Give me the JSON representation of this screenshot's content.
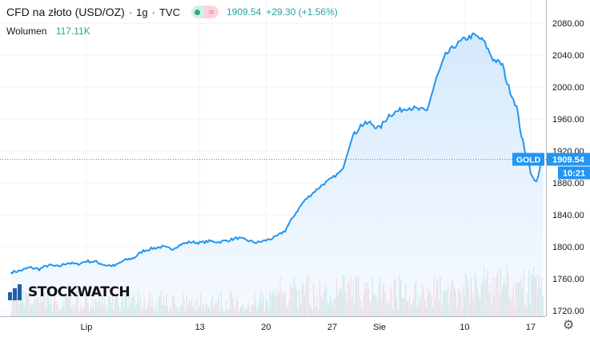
{
  "legend": {
    "symbol": "CFD na złoto (USD/OZ)",
    "interval": "1g",
    "source": "TVC",
    "last": "1909.54",
    "change": "+29.30 (+1.56%)",
    "status_icon": "market-status-icon"
  },
  "volume": {
    "label": "Wolumen",
    "value": "117.11K"
  },
  "brand": {
    "name": "STOCKWATCH"
  },
  "price_tag": {
    "label": "GOLD",
    "value": "1909.54",
    "time": "10:21"
  },
  "settings_icon": "gear-icon",
  "colors": {
    "line": "#2196f3",
    "area": "#e3f1fd",
    "up": "#26a69a",
    "down": "#ef5350",
    "tag": "#2196f3"
  },
  "chart_data": {
    "type": "area",
    "ylim": [
      1720,
      2100
    ],
    "y_ticks": [
      1720,
      1760,
      1800,
      1840,
      1880,
      1920,
      1960,
      2000,
      2040,
      2080
    ],
    "x_ticks": [
      {
        "label": "Lip",
        "day": 0
      },
      {
        "label": "13",
        "day": 12
      },
      {
        "label": "20",
        "day": 19
      },
      {
        "label": "27",
        "day": 26
      },
      {
        "label": "Sie",
        "day": 31
      },
      {
        "label": "10",
        "day": 40
      },
      {
        "label": "17",
        "day": 47
      }
    ],
    "xlim": [
      -8,
      49
    ],
    "price_points": [
      [
        -8,
        1768
      ],
      [
        -7,
        1770
      ],
      [
        -6,
        1774
      ],
      [
        -5,
        1772
      ],
      [
        -4,
        1777
      ],
      [
        -3,
        1775
      ],
      [
        -2,
        1780
      ],
      [
        -1,
        1778
      ],
      [
        0,
        1782
      ],
      [
        1,
        1781
      ],
      [
        2,
        1777
      ],
      [
        3,
        1776
      ],
      [
        4,
        1783
      ],
      [
        5,
        1786
      ],
      [
        6,
        1795
      ],
      [
        7,
        1798
      ],
      [
        8,
        1800
      ],
      [
        9,
        1797
      ],
      [
        10,
        1803
      ],
      [
        11,
        1806
      ],
      [
        12,
        1805
      ],
      [
        13,
        1807
      ],
      [
        14,
        1806
      ],
      [
        15,
        1808
      ],
      [
        16,
        1811
      ],
      [
        17,
        1808
      ],
      [
        18,
        1805
      ],
      [
        19,
        1808
      ],
      [
        20,
        1812
      ],
      [
        21,
        1820
      ],
      [
        22,
        1840
      ],
      [
        23,
        1857
      ],
      [
        24,
        1868
      ],
      [
        25,
        1878
      ],
      [
        26,
        1886
      ],
      [
        27,
        1895
      ],
      [
        28,
        1935
      ],
      [
        29,
        1952
      ],
      [
        30,
        1955
      ],
      [
        31,
        1948
      ],
      [
        32,
        1965
      ],
      [
        33,
        1970
      ],
      [
        34,
        1975
      ],
      [
        35,
        1972
      ],
      [
        36,
        1970
      ],
      [
        37,
        2010
      ],
      [
        38,
        2040
      ],
      [
        39,
        2052
      ],
      [
        40,
        2060
      ],
      [
        41,
        2065
      ],
      [
        42,
        2058
      ],
      [
        43,
        2035
      ],
      [
        44,
        2028
      ],
      [
        44.5,
        2005
      ],
      [
        45,
        1990
      ],
      [
        45.5,
        1975
      ],
      [
        46,
        1940
      ],
      [
        46.5,
        1912
      ],
      [
        46.8,
        1905
      ],
      [
        47.2,
        1885
      ],
      [
        47.6,
        1880
      ],
      [
        48,
        1902
      ],
      [
        48.3,
        1909.54
      ]
    ],
    "volume_scale_max": 100,
    "last_price": 1909.54
  }
}
